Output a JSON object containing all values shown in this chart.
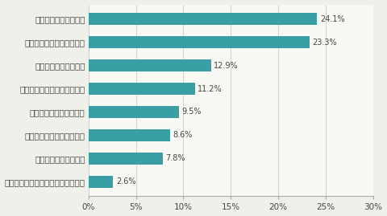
{
  "categories": [
    "自分にはない考えや情報を得られる",
    "業務の質を上げられる",
    "仕事上の問題を解決できる",
    "現場の雰囲気が良くなる",
    "仕事のストレスが軽減される",
    "仕事がより楽しくなる",
    "意思疏通がスムーズになる",
    "業務効率を上げられる"
  ],
  "values": [
    2.6,
    7.8,
    8.6,
    9.5,
    11.2,
    12.9,
    23.3,
    24.1
  ],
  "bar_color": "#3a9ea5",
  "label_color": "#444444",
  "background_color": "#f0f0eb",
  "plot_bg_color": "#f8f8f5",
  "grid_color": "#d0d0d0",
  "xlim": [
    0,
    30
  ],
  "xticks": [
    0,
    5,
    10,
    15,
    20,
    25,
    30
  ],
  "xtick_labels": [
    "0%",
    "5%",
    "10%",
    "15%",
    "20%",
    "25%",
    "30%"
  ],
  "value_fontsize": 7.0,
  "category_fontsize": 7.5,
  "tick_fontsize": 7.5,
  "bar_height": 0.5
}
